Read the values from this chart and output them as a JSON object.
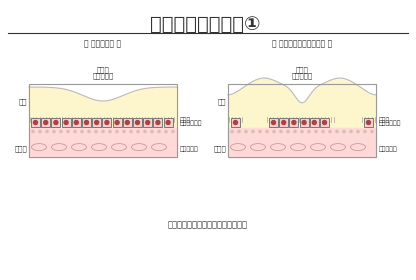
{
  "title": "加齢黄斑変性症　①",
  "subtitle": "黄斑の組織が加齢とともに委縮する",
  "left_label": "＜ 正常な状態 ＞",
  "right_label": "＜ 萎縮型加齢黄斑変性症 ＞",
  "fovea_label_line1": "中心窩",
  "fovea_label_line2": "（黄斑部）",
  "left_side_retina": "網膜",
  "left_side_choroid": "脈絡膜",
  "right_labels_line1": "視細胞",
  "right_labels_line2": "網膜色素上皮",
  "right_labels_line3": "脈絡膜血管",
  "bg_color": "#ffffff",
  "retina_color": "#fdf5cc",
  "choroid_color": "#ffd8d8",
  "rpe_fill": "#f8c8c8",
  "rpe_dot": "#aa4444",
  "text_color": "#333333",
  "border_color": "#999999",
  "separator_color": "#333333",
  "curve_color": "#bbbbbb",
  "vessel_edge": "#cc9999",
  "stipple_color": "#ddbbbb"
}
